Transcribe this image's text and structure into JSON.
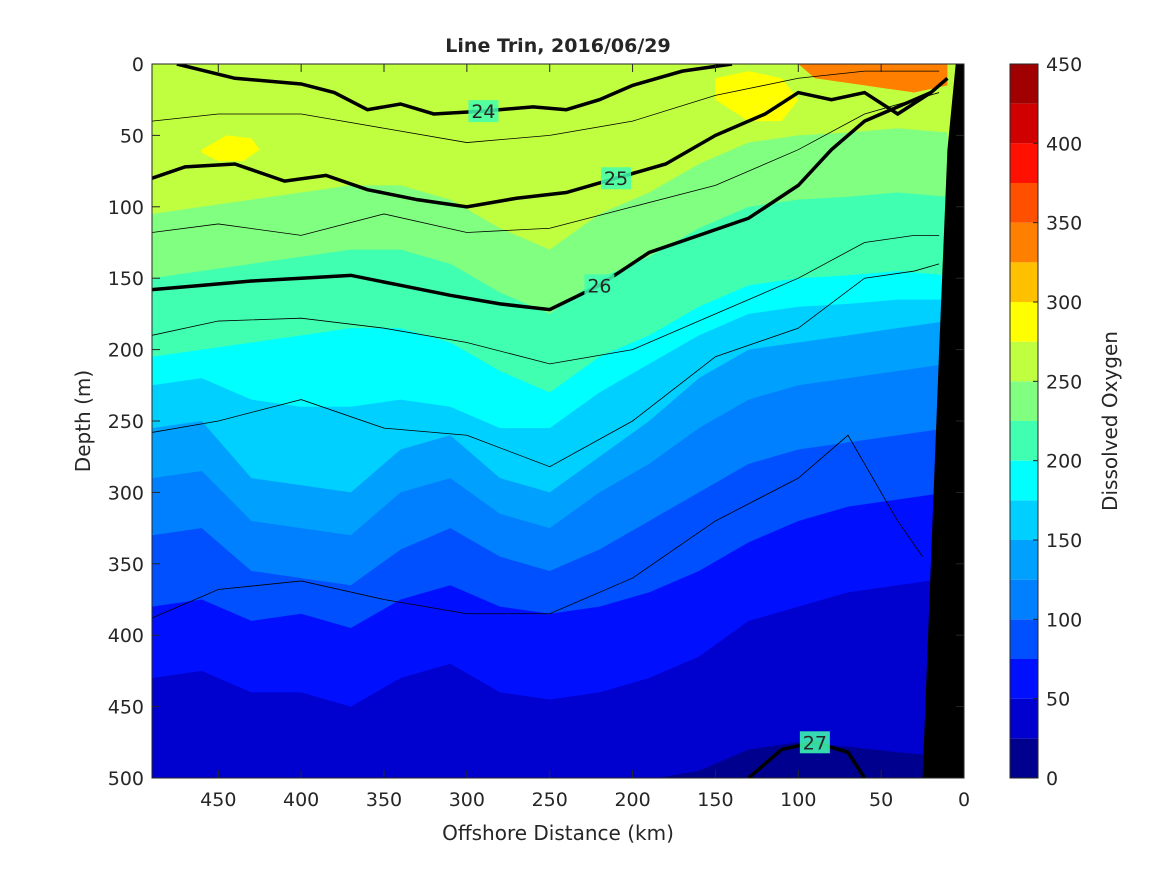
{
  "chart_data": {
    "type": "heatmap",
    "title": "Line Trin, 2016/06/29",
    "xlabel": "Offshore Distance (km)",
    "ylabel": "Depth (m)",
    "colorbar_label": "Dissolved Oxygen",
    "xlim": [
      490,
      0
    ],
    "ylim": [
      0,
      500
    ],
    "y_reversed": true,
    "x_reversed": true,
    "xticks": [
      450,
      400,
      350,
      300,
      250,
      200,
      150,
      100,
      50,
      0
    ],
    "yticks": [
      0,
      50,
      100,
      150,
      200,
      250,
      300,
      350,
      400,
      450,
      500
    ],
    "colorbar_ticks": [
      0,
      50,
      100,
      150,
      200,
      250,
      300,
      350,
      400,
      450
    ],
    "color_levels": [
      0,
      25,
      50,
      75,
      100,
      125,
      150,
      175,
      200,
      225,
      250,
      275,
      300,
      325,
      350,
      375,
      400,
      425,
      450
    ],
    "colors": [
      "#00008f",
      "#0000cf",
      "#0010ff",
      "#0050ff",
      "#0080ff",
      "#00a0ff",
      "#00d0ff",
      "#00ffff",
      "#40ffb0",
      "#80ff80",
      "#c0ff40",
      "#ffff00",
      "#ffc000",
      "#ff8000",
      "#ff5000",
      "#ff1000",
      "#d00000",
      "#a00000"
    ],
    "oxygen_bands": [
      {
        "threshold": 200,
        "depths": [
          205,
          200,
          195,
          190,
          185,
          185,
          195,
          215,
          230,
          205,
          190,
          170,
          155,
          150,
          148,
          145,
          148
        ]
      },
      {
        "threshold": 175,
        "depths": [
          225,
          220,
          235,
          240,
          240,
          235,
          240,
          255,
          255,
          230,
          210,
          190,
          175,
          170,
          168,
          165,
          165
        ]
      },
      {
        "threshold": 150,
        "depths": [
          255,
          250,
          290,
          295,
          300,
          270,
          260,
          290,
          300,
          275,
          250,
          220,
          200,
          195,
          190,
          185,
          180
        ]
      },
      {
        "threshold": 125,
        "depths": [
          290,
          285,
          320,
          325,
          330,
          300,
          290,
          315,
          325,
          300,
          280,
          255,
          235,
          225,
          220,
          215,
          210
        ]
      },
      {
        "threshold": 100,
        "depths": [
          330,
          325,
          355,
          360,
          365,
          340,
          325,
          345,
          355,
          340,
          320,
          300,
          280,
          270,
          265,
          260,
          255
        ]
      },
      {
        "threshold": 75,
        "depths": [
          380,
          375,
          390,
          385,
          395,
          375,
          365,
          380,
          385,
          380,
          370,
          355,
          335,
          320,
          310,
          305,
          300
        ]
      },
      {
        "threshold": 50,
        "depths": [
          430,
          425,
          440,
          440,
          450,
          430,
          420,
          440,
          445,
          440,
          430,
          415,
          390,
          380,
          370,
          365,
          360
        ]
      },
      {
        "threshold": 25,
        "depths": [
          501,
          501,
          501,
          501,
          501,
          501,
          501,
          501,
          501,
          501,
          501,
          495,
          480,
          475,
          478,
          482,
          485
        ]
      }
    ],
    "band_x": [
      490,
      460,
      430,
      400,
      370,
      340,
      310,
      280,
      250,
      220,
      190,
      160,
      130,
      100,
      70,
      40,
      10
    ],
    "contours": [
      {
        "label": "24",
        "x": [
          475,
          440,
          400,
          380,
          360,
          340,
          320,
          290,
          260,
          240,
          220,
          200,
          170,
          140
        ],
        "y": [
          0,
          10,
          14,
          20,
          32,
          28,
          35,
          33,
          30,
          32,
          25,
          15,
          5,
          0
        ]
      },
      {
        "label": "25",
        "x": [
          490,
          470,
          440,
          410,
          385,
          360,
          330,
          300,
          270,
          240,
          210,
          180,
          150,
          120,
          100,
          80,
          60,
          40,
          20,
          10
        ],
        "y": [
          80,
          72,
          70,
          82,
          78,
          88,
          95,
          100,
          94,
          90,
          80,
          70,
          50,
          35,
          20,
          25,
          20,
          35,
          20,
          10
        ]
      },
      {
        "label": "26",
        "x": [
          490,
          460,
          430,
          400,
          370,
          340,
          310,
          280,
          250,
          220,
          190,
          160,
          130,
          100,
          80,
          60,
          40,
          20
        ],
        "y": [
          158,
          155,
          152,
          150,
          148,
          155,
          162,
          168,
          172,
          155,
          132,
          120,
          108,
          85,
          60,
          40,
          30,
          20
        ]
      },
      {
        "label": "27",
        "x": [
          130,
          110,
          90,
          70,
          60
        ],
        "y": [
          500,
          480,
          475,
          482,
          500
        ]
      }
    ],
    "thin_contours": [
      {
        "x": [
          490,
          450,
          400,
          350,
          300,
          250,
          200,
          150,
          100,
          60,
          30,
          15
        ],
        "y": [
          40,
          35,
          35,
          45,
          55,
          50,
          40,
          22,
          10,
          5,
          5,
          5
        ]
      },
      {
        "x": [
          490,
          450,
          400,
          350,
          300,
          250,
          200,
          150,
          100,
          60,
          30,
          15
        ],
        "y": [
          118,
          112,
          120,
          105,
          118,
          115,
          100,
          85,
          60,
          35,
          25,
          20
        ]
      },
      {
        "x": [
          490,
          450,
          400,
          350,
          300,
          250,
          200,
          150,
          100,
          60,
          30,
          15
        ],
        "y": [
          190,
          180,
          178,
          185,
          195,
          210,
          200,
          175,
          150,
          125,
          120,
          120
        ]
      },
      {
        "x": [
          490,
          450,
          400,
          350,
          300,
          250,
          200,
          150,
          100,
          60,
          30,
          15
        ],
        "y": [
          258,
          250,
          235,
          255,
          260,
          282,
          250,
          205,
          185,
          150,
          145,
          140
        ]
      },
      {
        "x": [
          490,
          450,
          400,
          350,
          300,
          250,
          200,
          150,
          100,
          70,
          40,
          25
        ],
        "y": [
          388,
          368,
          362,
          375,
          385,
          385,
          360,
          320,
          290,
          260,
          320,
          345
        ]
      }
    ],
    "bathymetry": {
      "x": [
        0,
        25,
        20,
        15,
        10,
        5,
        0
      ],
      "y": [
        500,
        500,
        350,
        200,
        60,
        0,
        0
      ]
    },
    "surface_patches": [
      {
        "value": 325,
        "x": [
          100,
          80,
          60,
          40,
          20,
          10,
          10,
          30,
          60,
          90,
          100
        ],
        "y": [
          0,
          0,
          0,
          0,
          0,
          0,
          15,
          20,
          15,
          10,
          0
        ]
      },
      {
        "value": 290,
        "x": [
          150,
          130,
          110,
          100,
          110,
          130,
          150
        ],
        "y": [
          10,
          5,
          10,
          25,
          40,
          40,
          25
        ]
      },
      {
        "value": 280,
        "x": [
          460,
          445,
          430,
          425,
          435,
          450,
          460
        ],
        "y": [
          60,
          50,
          52,
          60,
          68,
          68,
          62
        ]
      }
    ]
  }
}
